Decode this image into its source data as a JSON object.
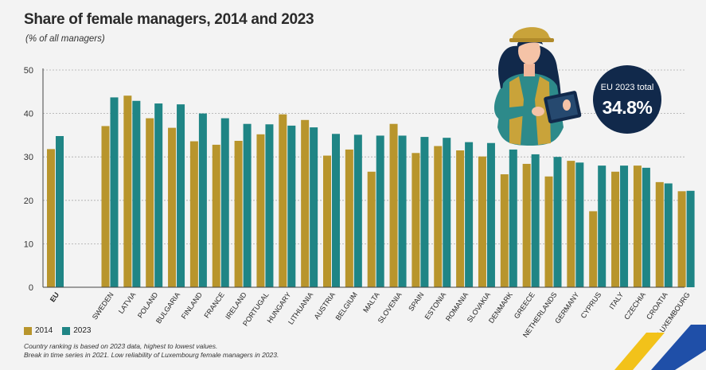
{
  "header": {
    "title": "Share of female managers, 2014 and 2023",
    "subtitle": "(% of all managers)"
  },
  "badge": {
    "label": "EU 2023 total",
    "value": "34.8%"
  },
  "legend": {
    "s1": "2014",
    "s2": "2023"
  },
  "footer": {
    "note1": "Country ranking is based on 2023 data, highest to lowest values.",
    "note2": "Break in time series in 2021. Low reliability of Luxembourg female managers in 2023."
  },
  "colors": {
    "s2014": "#b8952c",
    "s2023": "#1f8585",
    "badge": "#11294b",
    "grid": "#aaaaaa"
  },
  "chart_data": {
    "type": "bar",
    "title": "Share of female managers, 2014 and 2023",
    "ylabel": "(% of all managers)",
    "xlabel": "",
    "ylim": [
      0,
      50
    ],
    "yticks": [
      0,
      10,
      20,
      30,
      40,
      50
    ],
    "categories": [
      "EU",
      "SWEDEN",
      "LATVIA",
      "POLAND",
      "BULGARIA",
      "FINLAND",
      "FRANCE",
      "IRELAND",
      "PORTUGAL",
      "HUNGARY",
      "LITHUANIA",
      "AUSTRIA",
      "BELGIUM",
      "MALTA",
      "SLOVENIA",
      "SPAIN",
      "ESTONIA",
      "ROMANIA",
      "SLOVAKIA",
      "DENMARK",
      "GREECE",
      "NETHERLANDS",
      "GERMANY",
      "CYPRUS",
      "ITALY",
      "CZECHIA",
      "CROATIA",
      "LUXEMBOURG"
    ],
    "series": [
      {
        "name": "2014",
        "values": [
          31.8,
          37.1,
          44.1,
          38.9,
          36.7,
          33.6,
          32.8,
          33.7,
          35.2,
          39.8,
          38.5,
          30.3,
          31.7,
          26.6,
          37.6,
          30.9,
          32.5,
          31.5,
          30.1,
          26.0,
          28.4,
          25.5,
          29.1,
          17.5,
          26.6,
          28.0,
          24.2,
          22.1
        ]
      },
      {
        "name": "2023",
        "values": [
          34.8,
          43.7,
          42.9,
          42.3,
          42.1,
          40.0,
          38.9,
          37.6,
          37.5,
          37.2,
          36.8,
          35.3,
          35.1,
          34.9,
          34.9,
          34.6,
          34.4,
          33.4,
          33.2,
          31.7,
          30.6,
          30.0,
          28.7,
          28.0,
          28.0,
          27.5,
          23.9,
          22.2
        ]
      }
    ]
  }
}
